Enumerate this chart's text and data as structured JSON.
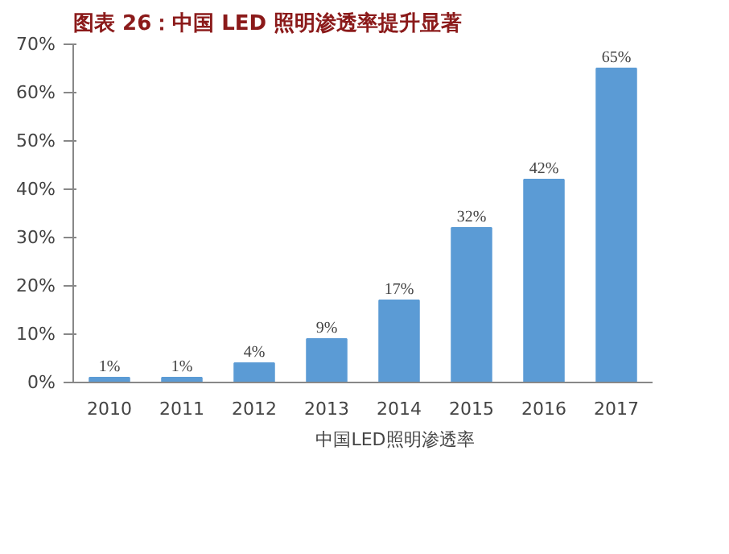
{
  "chart_data": {
    "type": "bar",
    "title": "图表 26：中国 LED 照明渗透率提升显著",
    "categories": [
      "2010",
      "2011",
      "2012",
      "2013",
      "2014",
      "2015",
      "2016",
      "2017"
    ],
    "series": [
      {
        "name": "中国LED照明渗透率",
        "color": "#5b9bd5",
        "values": [
          1,
          1,
          4,
          9,
          17,
          32,
          42,
          65
        ],
        "value_labels": [
          "1%",
          "1%",
          "4%",
          "9%",
          "17%",
          "32%",
          "42%",
          "65%"
        ]
      }
    ],
    "ylim": [
      0,
      70
    ],
    "yticks": [
      {
        "value": 0,
        "label": "0%"
      },
      {
        "value": 10,
        "label": "10%"
      },
      {
        "value": 20,
        "label": "20%"
      },
      {
        "value": 30,
        "label": "30%"
      },
      {
        "value": 40,
        "label": "40%"
      },
      {
        "value": 50,
        "label": "50%"
      },
      {
        "value": 60,
        "label": "60%"
      },
      {
        "value": 70,
        "label": "70%"
      }
    ],
    "grid": false,
    "legend": "bottom"
  }
}
